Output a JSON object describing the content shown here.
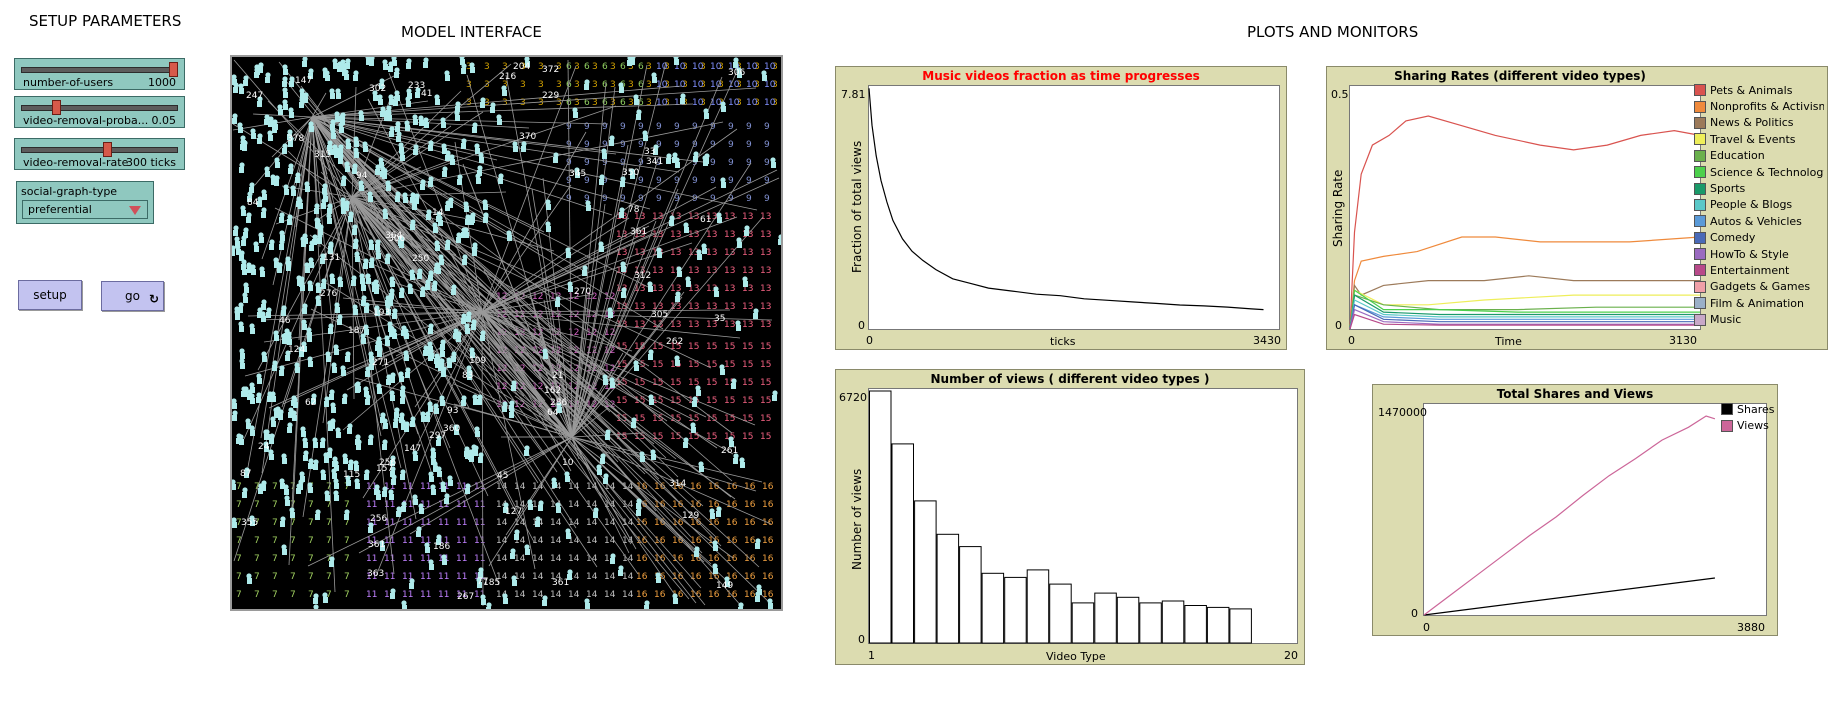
{
  "sections": {
    "setup": "SETUP PARAMETERS",
    "model": "MODEL INTERFACE",
    "plots": "PLOTS AND MONITORS"
  },
  "controls": {
    "sliders": [
      {
        "name": "number-of-users",
        "value": "1000",
        "fraction": 0.97
      },
      {
        "name": "video-removal-proba...",
        "value": "0.05",
        "fraction": 0.22
      },
      {
        "name": "video-removal-rate",
        "value": "300 ticks",
        "fraction": 0.55
      }
    ],
    "chooser": {
      "name": "social-graph-type",
      "selected": "preferential"
    },
    "setup_button": "setup",
    "go_button": "go"
  },
  "plots": {
    "music_fraction": {
      "title": "Music videos fraction as time progresses",
      "title_color": "#ff0000",
      "ylabel": "Fraction of total views",
      "xlabel": "ticks",
      "ymax": "7.81",
      "ymin": "0",
      "xmin": "0",
      "xmax": "3430"
    },
    "sharing_rates": {
      "title": "Sharing Rates (different video types)",
      "ylabel": "Sharing Rate",
      "xlabel": "Time",
      "ymax": "0.5",
      "ymin": "0",
      "xmin": "0",
      "xmax": "3130",
      "legend": [
        {
          "name": "Pets & Animals",
          "color": "#d9534f"
        },
        {
          "name": "Nonprofits & Activism",
          "color": "#ef8a3c"
        },
        {
          "name": "News & Politics",
          "color": "#9c7a5a"
        },
        {
          "name": "Travel & Events",
          "color": "#eeee5a"
        },
        {
          "name": "Education",
          "color": "#6ab04c"
        },
        {
          "name": "Science & Technology",
          "color": "#4cd04c"
        },
        {
          "name": "Sports",
          "color": "#1a9a6a"
        },
        {
          "name": "People & Blogs",
          "color": "#5ac8c8"
        },
        {
          "name": "Autos & Vehicles",
          "color": "#5a9ad8"
        },
        {
          "name": "Comedy",
          "color": "#4a6ab8"
        },
        {
          "name": "HowTo & Style",
          "color": "#9a6ac0"
        },
        {
          "name": "Entertainment",
          "color": "#b84a8a"
        },
        {
          "name": "Gadgets & Games",
          "color": "#f0a0a8"
        },
        {
          "name": "Film & Animation",
          "color": "#9ab0c8"
        },
        {
          "name": "Music",
          "color": "#c8a8c8"
        }
      ]
    },
    "views": {
      "title": "Number of views ( different video types )",
      "ylabel": "Number of views",
      "xlabel": "Video Type",
      "ymax": "6720",
      "ymin": "0",
      "xmin": "1",
      "xmax": "20",
      "bars": [
        6720,
        5310,
        3790,
        2900,
        2570,
        1860,
        1750,
        1950,
        1570,
        1070,
        1330,
        1220,
        1070,
        1120,
        1000,
        950,
        910
      ]
    },
    "totals": {
      "title": "Total Shares and Views",
      "ymax": "1470000",
      "ymin": "0",
      "xmin": "0",
      "xmax": "3880",
      "legend": [
        {
          "name": "Shares",
          "color": "#000000"
        },
        {
          "name": "Views",
          "color": "#cc6699"
        }
      ]
    }
  },
  "chart_data": [
    {
      "type": "line",
      "title": "Music videos fraction as time progresses",
      "xlabel": "ticks",
      "ylabel": "Fraction of total views",
      "xlim": [
        0,
        3430
      ],
      "ylim": [
        0,
        7.81
      ],
      "series": [
        {
          "x": [
            0,
            25,
            60,
            100,
            150,
            200,
            280,
            360,
            450,
            560,
            700,
            850,
            1000,
            1200,
            1400,
            1600,
            1800,
            2000,
            2200,
            2400,
            2600,
            2800,
            3000,
            3200,
            3300
          ],
          "y": [
            7.8,
            6.6,
            5.6,
            4.8,
            4.1,
            3.5,
            2.9,
            2.5,
            2.2,
            1.9,
            1.6,
            1.45,
            1.3,
            1.2,
            1.1,
            1.05,
            0.95,
            0.9,
            0.85,
            0.8,
            0.75,
            0.72,
            0.68,
            0.62,
            0.6
          ]
        }
      ]
    },
    {
      "type": "line",
      "title": "Sharing Rates (different video types)",
      "xlabel": "Time",
      "ylabel": "Sharing Rate",
      "xlim": [
        0,
        3130
      ],
      "ylim": [
        0,
        0.5
      ],
      "series": [
        {
          "name": "Pets & Animals",
          "x": [
            0,
            40,
            100,
            200,
            350,
            500,
            700,
            1000,
            1300,
            1700,
            2000,
            2300,
            2600,
            2900,
            3130
          ],
          "y": [
            0,
            0.2,
            0.32,
            0.38,
            0.4,
            0.43,
            0.44,
            0.42,
            0.4,
            0.38,
            0.37,
            0.38,
            0.4,
            0.41,
            0.4
          ]
        },
        {
          "name": "Nonprofits & Activism",
          "x": [
            0,
            40,
            100,
            300,
            600,
            1000,
            1300,
            1700,
            2000,
            2500,
            3130
          ],
          "y": [
            0,
            0.1,
            0.14,
            0.15,
            0.16,
            0.19,
            0.19,
            0.18,
            0.18,
            0.18,
            0.19
          ]
        },
        {
          "name": "News & Politics",
          "x": [
            0,
            40,
            100,
            300,
            700,
            1200,
            1600,
            2000,
            2500,
            3130
          ],
          "y": [
            0,
            0.09,
            0.07,
            0.09,
            0.1,
            0.1,
            0.11,
            0.1,
            0.1,
            0.1
          ]
        },
        {
          "name": "Travel & Events",
          "x": [
            0,
            40,
            300,
            700,
            1200,
            2000,
            3130
          ],
          "y": [
            0,
            0.08,
            0.05,
            0.05,
            0.06,
            0.07,
            0.07
          ]
        },
        {
          "name": "Education",
          "x": [
            0,
            40,
            300,
            800,
            1500,
            2200,
            3130
          ],
          "y": [
            0,
            0.07,
            0.05,
            0.04,
            0.04,
            0.045,
            0.045
          ]
        },
        {
          "name": "Science & Technology",
          "x": [
            0,
            40,
            300,
            800,
            1500,
            2200,
            3130
          ],
          "y": [
            0,
            0.08,
            0.04,
            0.04,
            0.035,
            0.035,
            0.035
          ]
        },
        {
          "name": "Sports",
          "x": [
            0,
            40,
            300,
            800,
            1500,
            2200,
            3130
          ],
          "y": [
            0,
            0.07,
            0.035,
            0.03,
            0.03,
            0.03,
            0.03
          ]
        },
        {
          "name": "People & Blogs",
          "x": [
            0,
            40,
            300,
            800,
            1500,
            2200,
            3130
          ],
          "y": [
            0,
            0.06,
            0.03,
            0.025,
            0.025,
            0.025,
            0.025
          ]
        },
        {
          "name": "Autos & Vehicles",
          "x": [
            0,
            40,
            300,
            800,
            1500,
            2200,
            3130
          ],
          "y": [
            0,
            0.05,
            0.025,
            0.02,
            0.02,
            0.02,
            0.02
          ]
        },
        {
          "name": "Comedy",
          "x": [
            0,
            40,
            300,
            800,
            1500,
            2200,
            3130
          ],
          "y": [
            0,
            0.05,
            0.02,
            0.015,
            0.015,
            0.015,
            0.015
          ]
        },
        {
          "name": "HowTo & Style",
          "x": [
            0,
            40,
            300,
            800,
            1500,
            2200,
            3130
          ],
          "y": [
            0,
            0.04,
            0.015,
            0.01,
            0.01,
            0.01,
            0.01
          ]
        },
        {
          "name": "Entertainment",
          "x": [
            0,
            40,
            300,
            800,
            1500,
            2200,
            3130
          ],
          "y": [
            0,
            0.03,
            0.01,
            0.008,
            0.008,
            0.008,
            0.008
          ]
        }
      ]
    },
    {
      "type": "bar",
      "title": "Number of views ( different video types )",
      "xlabel": "Video Type",
      "ylabel": "Number of views",
      "xlim": [
        1,
        20
      ],
      "ylim": [
        0,
        6720
      ],
      "categories": [
        1,
        2,
        3,
        4,
        5,
        6,
        7,
        8,
        9,
        10,
        11,
        12,
        13,
        14,
        15,
        16,
        17
      ],
      "values": [
        6720,
        5310,
        3790,
        2900,
        2570,
        1860,
        1750,
        1950,
        1570,
        1070,
        1330,
        1220,
        1070,
        1120,
        1000,
        950,
        910
      ]
    },
    {
      "type": "line",
      "title": "Total Shares and Views",
      "xlim": [
        0,
        3880
      ],
      "ylim": [
        0,
        1470000
      ],
      "series": [
        {
          "name": "Shares",
          "x": [
            0,
            3300
          ],
          "y": [
            0,
            260000
          ]
        },
        {
          "name": "Views",
          "x": [
            0,
            300,
            600,
            900,
            1200,
            1500,
            1800,
            2100,
            2400,
            2700,
            3000,
            3200,
            3300
          ],
          "y": [
            0,
            140000,
            280000,
            420000,
            560000,
            690000,
            840000,
            980000,
            1100000,
            1230000,
            1320000,
            1400000,
            1380000
          ]
        }
      ]
    }
  ]
}
